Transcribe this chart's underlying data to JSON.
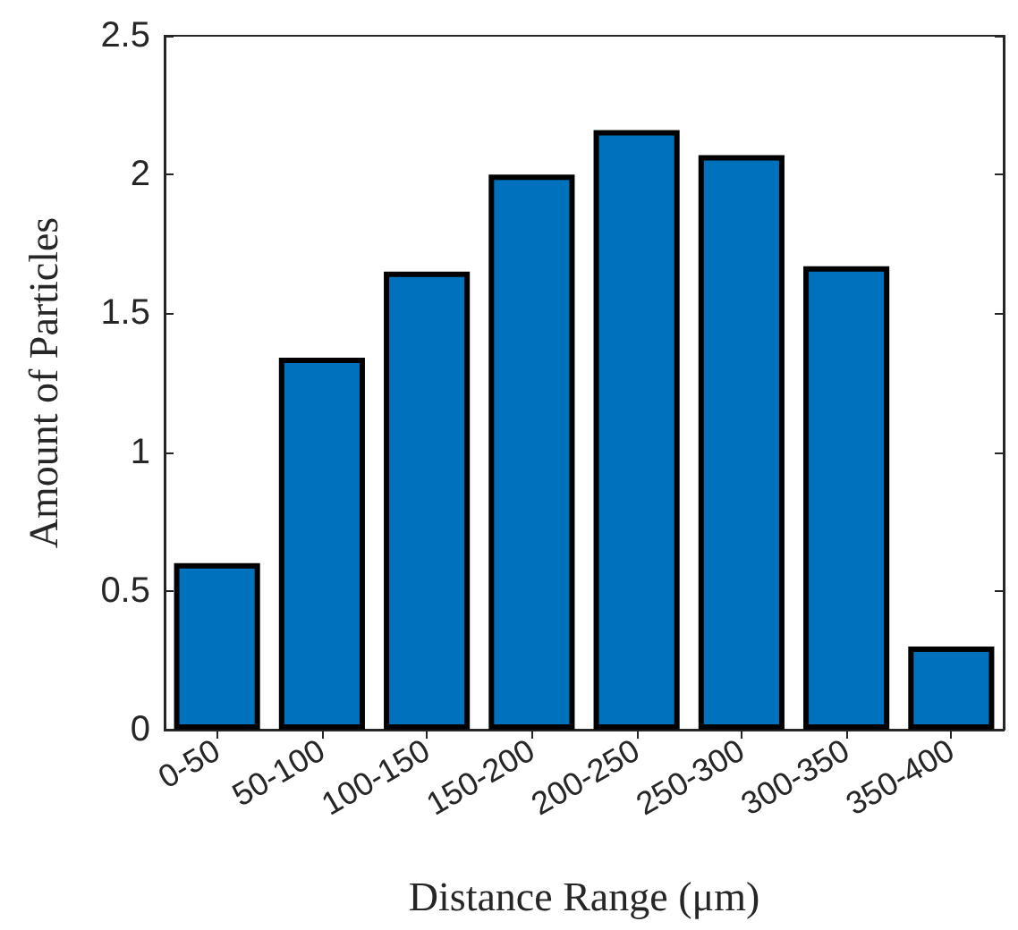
{
  "chart_data": {
    "type": "bar",
    "xlabel": "Distance Range (μm)",
    "ylabel": "Amount of Particles",
    "categories": [
      "0-50",
      "50-100",
      "100-150",
      "150-200",
      "200-250",
      "250-300",
      "300-350",
      "350-400"
    ],
    "values": [
      0.6,
      1.34,
      1.65,
      2.0,
      2.16,
      2.07,
      1.67,
      0.3
    ],
    "color": "#0072bd",
    "ylim": [
      0,
      2.5
    ],
    "yticks": [
      0,
      0.5,
      1,
      1.5,
      2,
      2.5
    ],
    "grid": false
  }
}
